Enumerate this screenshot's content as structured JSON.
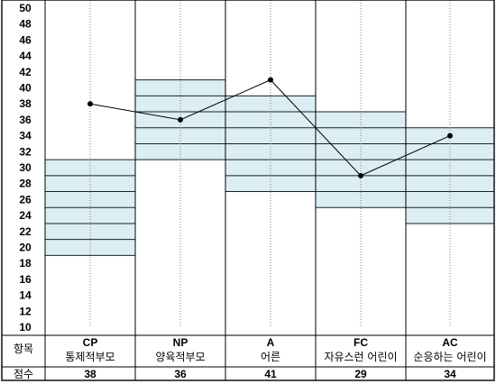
{
  "chart_data": {
    "type": "line",
    "y_axis": {
      "min": 10,
      "max": 50,
      "step": 2,
      "ticks": [
        "50",
        "48",
        "46",
        "44",
        "42",
        "40",
        "38",
        "36",
        "34",
        "32",
        "30",
        "28",
        "26",
        "24",
        "22",
        "20",
        "18",
        "16",
        "14",
        "12",
        "10"
      ]
    },
    "grid": true,
    "row_headers": {
      "item": "항목",
      "score": "점수"
    },
    "categories": [
      {
        "code": "CP",
        "name": "통제적부모",
        "score": 38,
        "band": [
          19,
          31
        ]
      },
      {
        "code": "NP",
        "name": "양육적부모",
        "score": 36,
        "band": [
          31,
          41
        ]
      },
      {
        "code": "A",
        "name": "어른",
        "score": 41,
        "band": [
          27,
          39
        ]
      },
      {
        "code": "FC",
        "name": "자유스런 어린이",
        "score": 29,
        "band": [
          25,
          37
        ]
      },
      {
        "code": "AC",
        "name": "순응하는 어린이",
        "score": 34,
        "band": [
          23,
          35
        ]
      }
    ],
    "colors": {
      "band_fill": "#dbeef3",
      "band_line": "#1f1f1f",
      "line": "#000000",
      "grid": "#000000",
      "dotted": "#7f7f7f"
    }
  }
}
